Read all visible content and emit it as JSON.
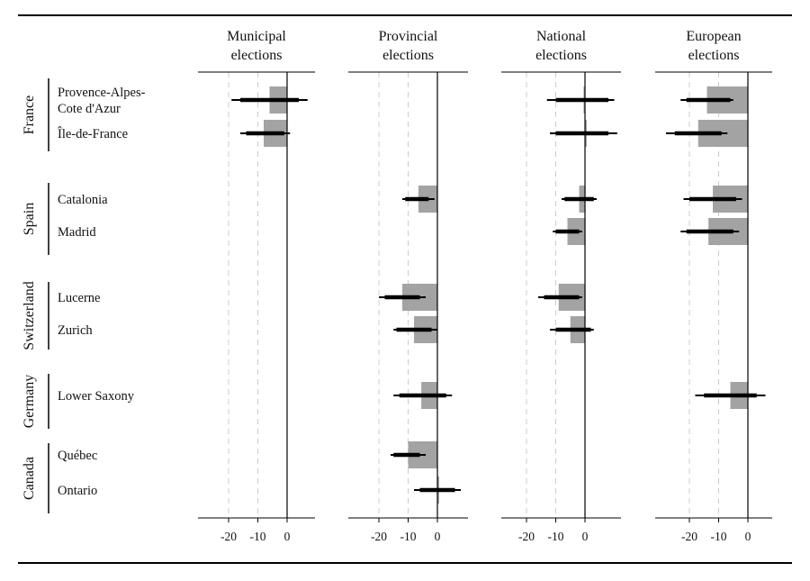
{
  "chart_data": {
    "type": "bar",
    "panels": [
      {
        "title_lines": [
          "Municipal",
          "elections"
        ]
      },
      {
        "title_lines": [
          "Provincial",
          "elections"
        ]
      },
      {
        "title_lines": [
          "National",
          "elections"
        ]
      },
      {
        "title_lines": [
          "European",
          "elections"
        ]
      }
    ],
    "countries": [
      {
        "name": "France",
        "regions": [
          {
            "label_lines": [
              "Provence-Alpes-",
              "Cote d'Azur"
            ]
          },
          {
            "label_lines": [
              "Île-de-France"
            ]
          }
        ]
      },
      {
        "name": "Spain",
        "regions": [
          {
            "label_lines": [
              "Catalonia"
            ]
          },
          {
            "label_lines": [
              "Madrid"
            ]
          }
        ]
      },
      {
        "name": "Switzerland",
        "regions": [
          {
            "label_lines": [
              "Lucerne"
            ]
          },
          {
            "label_lines": [
              "Zurich"
            ]
          }
        ]
      },
      {
        "name": "Germany",
        "regions": [
          {
            "label_lines": [
              "Lower Saxony"
            ]
          }
        ]
      },
      {
        "name": "Canada",
        "regions": [
          {
            "label_lines": [
              "Québec"
            ]
          },
          {
            "label_lines": [
              "Ontario"
            ]
          }
        ]
      }
    ],
    "x_ticks": [
      -20,
      -10,
      0
    ],
    "x_tick_labels": [
      "-20",
      "-10",
      "0"
    ],
    "xlim": [
      -28,
      10
    ],
    "grid": "dashed vertical at -20 and -10",
    "series": [
      {
        "panel": 0,
        "values": [
          -6,
          -8,
          null,
          null,
          null,
          null,
          null,
          null,
          null
        ],
        "ci_inner": [
          [
            -16,
            4
          ],
          [
            -14,
            -1
          ],
          null,
          null,
          null,
          null,
          null,
          null,
          null
        ],
        "ci_outer": [
          [
            -19,
            7
          ],
          [
            -16,
            1
          ],
          null,
          null,
          null,
          null,
          null,
          null,
          null
        ]
      },
      {
        "panel": 1,
        "values": [
          null,
          null,
          -6.5,
          null,
          -12,
          -8,
          -5.5,
          -10,
          0
        ],
        "ci_inner": [
          null,
          null,
          [
            -11,
            -3
          ],
          null,
          [
            -18,
            -6
          ],
          [
            -14,
            -2
          ],
          [
            -13,
            3
          ],
          [
            -15,
            -6
          ],
          [
            -6,
            6
          ]
        ],
        "ci_outer": [
          null,
          null,
          [
            -12,
            -1
          ],
          null,
          [
            -20,
            -4
          ],
          [
            -15,
            0
          ],
          [
            -15,
            5
          ],
          [
            -16,
            -4
          ],
          [
            -8,
            8
          ]
        ]
      },
      {
        "panel": 2,
        "values": [
          -0.5,
          0.5,
          -2,
          -6,
          -9,
          -5,
          null,
          null,
          null
        ],
        "ci_inner": [
          [
            -10,
            8
          ],
          [
            -10,
            8
          ],
          [
            -7,
            3
          ],
          [
            -10,
            -2
          ],
          [
            -14,
            -2
          ],
          [
            -10,
            2
          ],
          null,
          null,
          null
        ],
        "ci_outer": [
          [
            -13,
            10
          ],
          [
            -12,
            11
          ],
          [
            -8,
            4
          ],
          [
            -11,
            -1
          ],
          [
            -16,
            -1
          ],
          [
            -12,
            3
          ],
          null,
          null,
          null
        ]
      },
      {
        "panel": 3,
        "values": [
          -14,
          -17,
          -12,
          -13.5,
          null,
          null,
          -6,
          null,
          null
        ],
        "ci_inner": [
          [
            -21,
            -6
          ],
          [
            -25,
            -9
          ],
          [
            -20,
            -4
          ],
          [
            -21,
            -5
          ],
          null,
          null,
          [
            -15,
            3
          ],
          null,
          null
        ],
        "ci_outer": [
          [
            -23,
            -5
          ],
          [
            -28,
            -7
          ],
          [
            -22,
            -2
          ],
          [
            -23,
            -3
          ],
          null,
          null,
          [
            -18,
            6
          ],
          null,
          null
        ]
      }
    ],
    "colors": {
      "bar": "#a3a3a3",
      "ci": "#000000",
      "grid": "#cccccc",
      "axis": "#000000"
    }
  }
}
